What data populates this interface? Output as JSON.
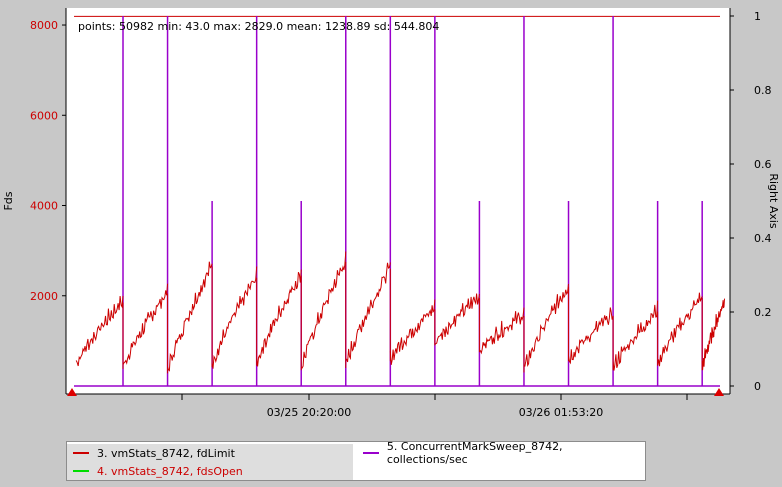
{
  "chart_data": {
    "type": "line",
    "stats_text": "points: 50982 min: 43.0 max: 2829.0 mean: 1238.89 sd: 544.804",
    "ylabel_left": "Fds",
    "ylabel_right": "Right Axis",
    "ylim_left": [
      0,
      8200
    ],
    "ylim_right": [
      0,
      1
    ],
    "left_ticks": [
      "2000",
      "4000",
      "6000",
      "8000"
    ],
    "left_tick_values": [
      2000,
      4000,
      6000,
      8000
    ],
    "right_ticks": [
      "0",
      "0.2",
      "0.4",
      "0.6",
      "0.8",
      "1"
    ],
    "right_tick_values": [
      0,
      0.2,
      0.4,
      0.6,
      0.8,
      1
    ],
    "x_range_hours": [
      0,
      14.5
    ],
    "x_ticks": [
      {
        "x": 3.2,
        "label": ""
      },
      {
        "x": 6.55,
        "label": "03/25 20:20:00"
      },
      {
        "x": 9.9,
        "label": ""
      },
      {
        "x": 13.23,
        "label": "03/26 01:53:20"
      },
      {
        "x": 16.55,
        "label": ""
      }
    ],
    "grid": false,
    "colors": {
      "fdLimit": "#cc0000",
      "fdsOpen": "#cc0000",
      "collections": "#9900cc",
      "left_axis": "#cc0000",
      "legend_fdsOpen_swatch": "#00dd00"
    },
    "fdLimit": 8192,
    "fdsOpen_cycles": [
      {
        "x0": 0.05,
        "x1": 1.1,
        "y0": 450,
        "y1": 1850
      },
      {
        "x0": 1.1,
        "x1": 2.1,
        "y0": 380,
        "y1": 2050
      },
      {
        "x0": 2.1,
        "x1": 3.1,
        "y0": 280,
        "y1": 2650
      },
      {
        "x0": 3.1,
        "x1": 4.1,
        "y0": 420,
        "y1": 2400
      },
      {
        "x0": 4.1,
        "x1": 5.1,
        "y0": 450,
        "y1": 2450
      },
      {
        "x0": 5.1,
        "x1": 6.1,
        "y0": 350,
        "y1": 2750
      },
      {
        "x0": 6.1,
        "x1": 7.1,
        "y0": 400,
        "y1": 2600
      },
      {
        "x0": 7.1,
        "x1": 8.1,
        "y0": 550,
        "y1": 1700
      },
      {
        "x0": 8.1,
        "x1": 9.1,
        "y0": 900,
        "y1": 1950
      },
      {
        "x0": 9.1,
        "x1": 10.1,
        "y0": 750,
        "y1": 1550
      },
      {
        "x0": 10.1,
        "x1": 11.1,
        "y0": 300,
        "y1": 2200
      },
      {
        "x0": 11.1,
        "x1": 12.1,
        "y0": 550,
        "y1": 1550
      },
      {
        "x0": 12.1,
        "x1": 13.1,
        "y0": 350,
        "y1": 1650
      },
      {
        "x0": 13.1,
        "x1": 14.1,
        "y0": 450,
        "y1": 1950
      },
      {
        "x0": 14.1,
        "x1": 14.6,
        "y0": 350,
        "y1": 1850
      }
    ],
    "collections": {
      "spike_x": [
        1.1,
        2.1,
        3.1,
        4.1,
        5.1,
        6.1,
        7.1,
        8.1,
        9.1,
        10.1,
        11.1,
        12.1,
        13.1,
        14.1
      ],
      "spike_height": [
        1.0,
        1.0,
        0.5,
        1.0,
        0.5,
        1.0,
        1.0,
        1.0,
        0.5,
        1.0,
        0.5,
        1.0,
        0.5,
        0.5
      ]
    },
    "legend": [
      {
        "label": "3.  vmStats_8742, fdLimit"
      },
      {
        "label": "5.  ConcurrentMarkSweep_8742, collections/sec"
      },
      {
        "label": "4.  vmStats_8742, fdsOpen"
      }
    ]
  }
}
